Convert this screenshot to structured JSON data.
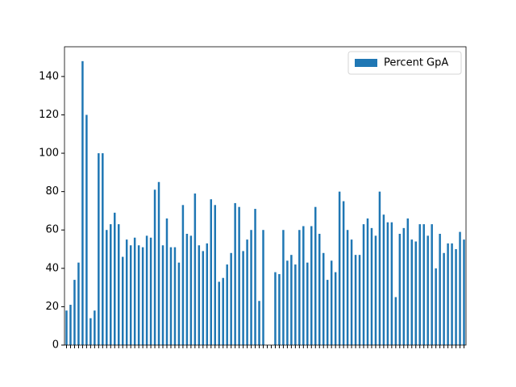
{
  "chart_data": {
    "type": "bar",
    "categories": [
      null,
      null,
      null,
      null,
      null,
      null,
      null,
      null,
      null,
      null,
      null,
      null,
      null,
      null,
      null,
      null,
      null,
      null,
      null,
      null,
      null,
      null,
      null,
      null,
      null,
      null,
      null,
      null,
      null,
      null,
      null,
      null,
      null,
      null,
      null,
      null,
      null,
      null,
      null,
      null,
      null,
      null,
      null,
      null,
      null,
      null,
      null,
      null,
      null,
      null,
      null,
      null,
      null,
      null,
      null,
      null,
      null,
      null,
      null,
      null,
      null,
      null,
      null,
      null,
      null,
      null,
      null,
      null,
      null,
      null,
      null,
      null,
      null,
      null,
      null,
      null,
      null,
      null,
      null,
      null,
      null,
      null,
      null,
      null,
      null,
      null,
      null,
      null,
      null,
      null,
      null,
      null,
      null,
      null,
      null,
      null,
      null,
      null,
      null,
      null
    ],
    "series": [
      {
        "name": "Percent GpA",
        "color": "#1f77b4",
        "values": [
          18,
          21,
          34,
          43,
          148,
          120,
          14,
          18,
          100,
          100,
          60,
          63,
          69,
          63,
          46,
          55,
          52,
          56,
          52,
          51,
          57,
          56,
          81,
          85,
          52,
          66,
          51,
          51,
          43,
          73,
          58,
          57,
          79,
          52,
          49,
          53,
          76,
          73,
          33,
          35,
          42,
          48,
          74,
          72,
          49,
          55,
          60,
          71,
          23,
          60,
          null,
          null,
          38,
          37,
          60,
          44,
          47,
          42,
          60,
          62,
          43,
          62,
          72,
          58,
          48,
          34,
          44,
          38,
          80,
          75,
          60,
          55,
          47,
          47,
          63,
          66,
          61,
          57,
          80,
          68,
          64,
          64,
          25,
          58,
          61,
          66,
          55,
          54,
          63,
          63,
          57,
          63,
          40,
          58,
          48,
          53,
          53,
          50,
          59,
          55
        ]
      }
    ],
    "ylim": [
      0,
      155.5
    ],
    "yticks": [
      0,
      20,
      40,
      60,
      80,
      100,
      120,
      140
    ],
    "legend": "upper right"
  }
}
